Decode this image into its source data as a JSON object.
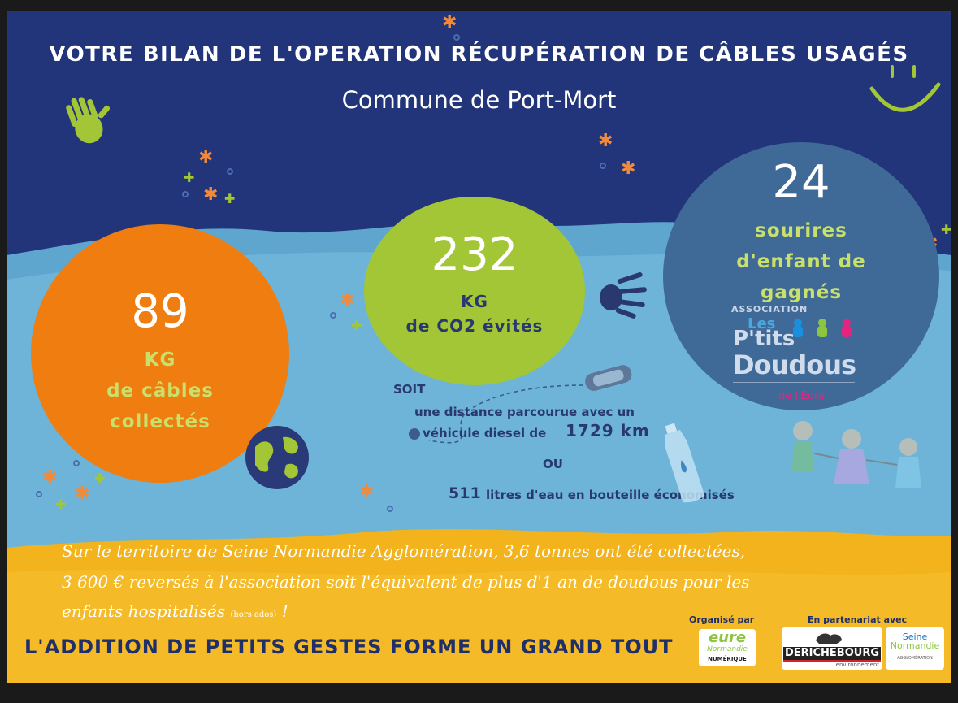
{
  "header": {
    "title": "VOTRE BILAN DE L'OPERATION RÉCUPÉRATION DE CÂBLES USAGÉS",
    "subtitle": "Commune de Port-Mort"
  },
  "stats": {
    "cables": {
      "value": "89",
      "unit": "KG",
      "line1": "de câbles",
      "line2": "collectés"
    },
    "co2": {
      "value": "232",
      "unit": "KG",
      "line1": "de CO2 évités"
    },
    "smiles": {
      "value": "24",
      "line1": "sourires",
      "line2": "d'enfant de",
      "line3": "gagnés"
    }
  },
  "association": {
    "label": "ASSOCIATION",
    "name_line1": "Les",
    "name_line2": "P'tits",
    "name_line3": "Doudous",
    "region": "de l'Eure"
  },
  "equivalence": {
    "soit": "SOIT",
    "distance_text_a": "une distance parcourue avec un",
    "distance_text_b": "véhicule diesel de",
    "distance_value": "1729 km",
    "ou": "OU",
    "water_value": "511",
    "water_text": "litres d'eau en bouteille économisés"
  },
  "territory": {
    "line1": "Sur le territoire de Seine Normandie Agglomération, 3,6 tonnes ont été collectées,",
    "line2": "3 600 € reversés à l'association soit l'équivalent de plus d'1 an de doudous pour les",
    "line3": "enfants hospitalisés",
    "note": "(hors ados)",
    "end": "!"
  },
  "slogan": "L'ADDITION DE PETITS GESTES FORME UN GRAND TOUT",
  "partners": {
    "organised_label": "Organisé par",
    "partnership_label": "En partenariat avec",
    "eure_logo": {
      "line1": "eure",
      "line2": "Normandie",
      "line3": "NUMÉRIQUE"
    },
    "derichebourg_logo": {
      "name": "DERICHEBOURG",
      "sub": "environnement"
    },
    "seine_logo": {
      "line1": "Seine",
      "line2": "Normandie",
      "line3": "AGGLOMÉRATION"
    }
  },
  "colors": {
    "navy": "#22357a",
    "light_blue": "#6db4d8",
    "yellow": "#f2b31c",
    "orange": "#f07d0f",
    "green": "#a3c636",
    "circle_blue": "#3f6a98"
  },
  "icons": [
    "hand-icon",
    "smiley-icon",
    "star-icon",
    "globe-icon",
    "car-icon",
    "bottle-icon",
    "children-drawing-icon"
  ]
}
